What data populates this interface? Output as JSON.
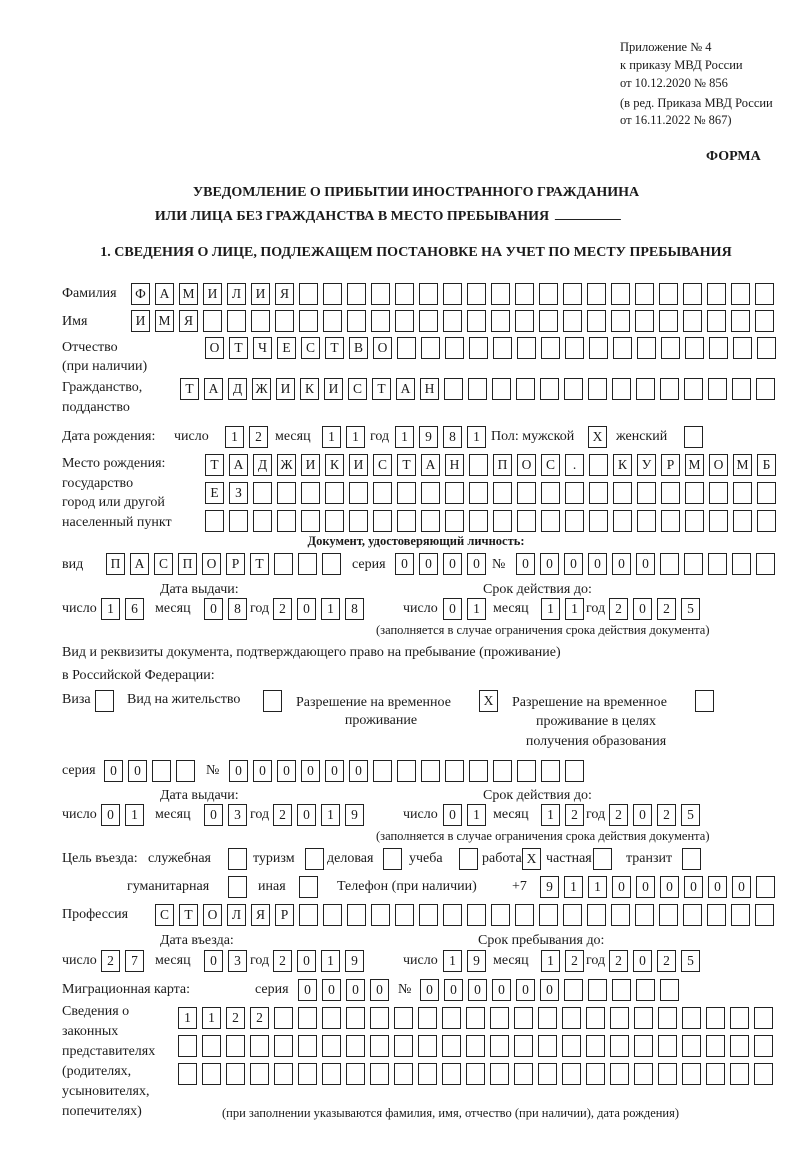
{
  "header": {
    "appendix": [
      "Приложение № 4",
      "к приказу МВД России",
      "от 10.12.2020 № 856"
    ],
    "amendment": [
      "(в ред. Приказа МВД России",
      "от 16.11.2022 № 867)"
    ],
    "form_label": "ФОРМА",
    "title": [
      "УВЕДОМЛЕНИЕ О ПРИБЫТИИ ИНОСТРАННОГО ГРАЖДАНИНА",
      "ИЛИ ЛИЦА БЕЗ ГРАЖДАНСТВА В МЕСТО ПРЕБЫВАНИЯ"
    ],
    "section1": "1. СВЕДЕНИЯ О ЛИЦЕ, ПОДЛЕЖАЩЕМ ПОСТАНОВКЕ НА УЧЕТ ПО МЕСТУ ПРЕБЫВАНИЯ"
  },
  "common": {
    "day": "число",
    "month": "месяц",
    "year": "год",
    "series": "серия",
    "number": "№",
    "validity_note": "(заполняется в случае ограничения срока действия документа)"
  },
  "person": {
    "surname": {
      "label": "Фамилия",
      "value": "ФАМИЛИЯ"
    },
    "name": {
      "label": "Имя",
      "value": "ИМЯ"
    },
    "patronymic": {
      "label": [
        "Отчество",
        "(при наличии)"
      ],
      "value": "ОТЧЕСТВО"
    },
    "citizenship": {
      "label": [
        "Гражданство,",
        "подданство"
      ],
      "value": "ТАДЖИКИСТАН"
    },
    "birth_date": {
      "label": "Дата рождения:",
      "day": "12",
      "month": "11",
      "year": "1981"
    },
    "sex": {
      "label": "Пол: мужской",
      "male": "X",
      "female_label": "женский",
      "female": ""
    },
    "birth_place": {
      "label": [
        "Место рождения:",
        "государство",
        "город или другой",
        "населенный пункт"
      ],
      "lines": [
        "ТАДЖИКИСТАН ПОС. КУРМОМБ",
        "ЕЗ",
        ""
      ]
    }
  },
  "identity_doc": {
    "heading": "Документ, удостоверяющий личность:",
    "type_label": "вид",
    "type": "ПАСПОРТ",
    "series": "0000",
    "number": "000000",
    "issue_label": "Дата выдачи:",
    "issue": {
      "day": "16",
      "month": "08",
      "year": "2018"
    },
    "valid_label": "Срок действия до:",
    "valid": {
      "day": "01",
      "month": "11",
      "year": "2025"
    }
  },
  "residence_doc": {
    "label": [
      "Вид и реквизиты документа, подтверждающего право на пребывание (проживание)",
      "в Российской Федерации:"
    ],
    "options": [
      {
        "label": [
          "Виза"
        ],
        "checked": ""
      },
      {
        "label": [
          "Вид на жительство"
        ],
        "checked": ""
      },
      {
        "label": [
          "Разрешение на временное",
          "проживание"
        ],
        "checked": "X"
      },
      {
        "label": [
          "Разрешение на временное",
          "проживание в целях",
          "получения образования"
        ],
        "checked": ""
      }
    ],
    "series": "00",
    "number": "000000",
    "issue_label": "Дата выдачи:",
    "issue": {
      "day": "01",
      "month": "03",
      "year": "2019"
    },
    "valid_label": "Срок действия до:",
    "valid": {
      "day": "01",
      "month": "12",
      "year": "2025"
    }
  },
  "purpose": {
    "label": "Цель въезда:",
    "options": [
      {
        "label": "служебная",
        "checked": ""
      },
      {
        "label": "туризм",
        "checked": ""
      },
      {
        "label": "деловая",
        "checked": ""
      },
      {
        "label": "учеба",
        "checked": ""
      },
      {
        "label": "работа",
        "checked": "X"
      },
      {
        "label": "частная",
        "checked": ""
      },
      {
        "label": "транзит",
        "checked": ""
      },
      {
        "label": "гуманитарная",
        "checked": ""
      },
      {
        "label": "иная",
        "checked": ""
      }
    ]
  },
  "phone": {
    "label": "Телефон (при наличии)",
    "prefix": "+7",
    "value": "911000000"
  },
  "profession": {
    "label": "Профессия",
    "value": "СТОЛЯР"
  },
  "entry": {
    "label": "Дата въезда:",
    "day": "27",
    "month": "03",
    "year": "2019"
  },
  "stay_until": {
    "label": "Срок пребывания до:",
    "day": "19",
    "month": "12",
    "year": "2025"
  },
  "migration_card": {
    "label": "Миграционная карта:",
    "series": "0000",
    "number": "000000"
  },
  "representatives": {
    "label": [
      "Сведения о",
      "законных",
      "представителях",
      "(родителях,",
      "усыновителях,",
      "попечителях)"
    ],
    "lines": [
      "1122",
      "",
      ""
    ],
    "note": "(при заполнении указываются фамилия, имя, отчество (при наличии), дата рождения)"
  }
}
